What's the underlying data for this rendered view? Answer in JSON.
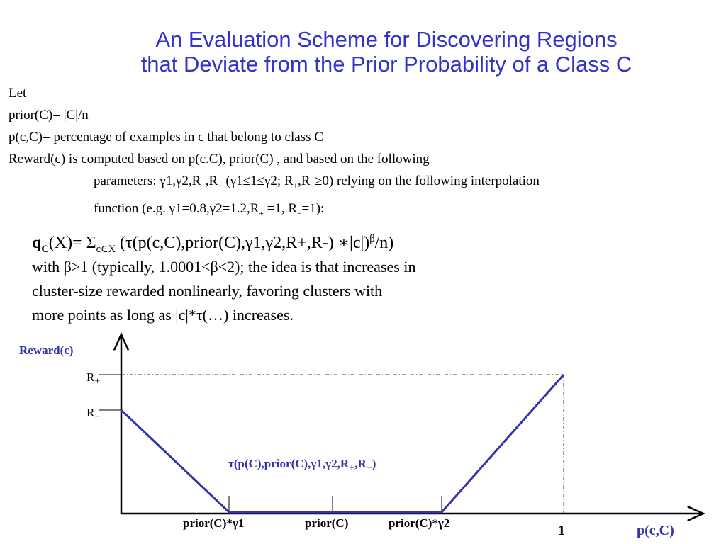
{
  "title": {
    "line1": "An Evaluation Scheme for Discovering Regions",
    "line2": "that Deviate from the Prior Probability of a Class C"
  },
  "intro": {
    "let": "Let",
    "prior": "prior(C)= |C|/n",
    "pc": "p(c,C)= percentage of examples in c that belong to class C",
    "reward": "Reward(c) is computed based on p(c.C), prior(C) , and based on the following",
    "params_a": "parameters: γ1,γ2,R",
    "params_b": ",R",
    "params_c": " (γ1≤1≤γ2; R",
    "params_d": ",R",
    "params_e": "≥0) relying on the following interpolation",
    "func_a": "function (e.g. γ1=0.8,γ2=1.2,R",
    "func_b": " =1, R",
    "func_c": "=1):",
    "plus": "+",
    "minus": "−"
  },
  "formula": {
    "q": "q",
    "q_sub": "C",
    "eq": "(X)= Σ",
    "sum_sub": "c∈X",
    "body": " (τ(p(c,C),prior(C),γ1,γ2,R+,R-) ∗|c|)",
    "beta": "β",
    "tail": "/n)"
  },
  "description": {
    "line1": "with β>1 (typically, 1.0001<β<2); the idea is that increases in",
    "line2": "cluster-size rewarded nonlinearly, favoring clusters with",
    "line3": "more points as long as |c|*τ(…) increases."
  },
  "graph": {
    "ylabel": "Reward(c)",
    "r": "R",
    "r_plus_sub": "+",
    "r_minus_sub": "−",
    "curve_label_a": "τ(p(C),prior(C),γ1,γ2,R",
    "curve_label_b": ",R",
    "curve_label_c": ")",
    "x_tick1": "prior(C)*γ1",
    "x_tick2": "prior(C)",
    "x_tick3": "prior(C)*γ2",
    "x_one": "1",
    "xlabel": "p(c,C)",
    "line_color": "#3333aa"
  }
}
